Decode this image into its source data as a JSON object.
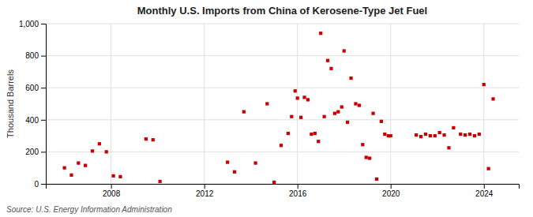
{
  "chart_data": {
    "type": "scatter",
    "title": "Monthly U.S. Imports from China of Kerosene-Type Jet Fuel",
    "y_label": "Thousand Barrels",
    "annotations": [
      "Source: U.S. Energy Information Administration"
    ],
    "color": "#cc0000",
    "marker": "square",
    "grid": true,
    "xlim": [
      2005.2,
      2025.5
    ],
    "xticks": [
      2008,
      2012,
      2016,
      2020,
      2024
    ],
    "ylim": [
      0,
      1000
    ],
    "yticks": [
      0,
      200,
      400,
      600,
      800,
      {
        "value": 1000,
        "label": "1,000"
      }
    ],
    "x": [
      2006.0,
      2006.3,
      2006.6,
      2006.9,
      2007.2,
      2007.5,
      2007.8,
      2008.1,
      2008.4,
      2009.5,
      2009.8,
      2010.1,
      2013.0,
      2013.3,
      2013.7,
      2014.2,
      2014.7,
      2015.0,
      2015.3,
      2015.6,
      2015.75,
      2015.9,
      2016.0,
      2016.15,
      2016.3,
      2016.45,
      2016.6,
      2016.75,
      2016.9,
      2017.0,
      2017.15,
      2017.3,
      2017.45,
      2017.6,
      2017.75,
      2017.9,
      2018.0,
      2018.15,
      2018.3,
      2018.5,
      2018.65,
      2018.8,
      2018.95,
      2019.1,
      2019.25,
      2019.4,
      2019.6,
      2019.75,
      2019.9,
      2020.0,
      2021.1,
      2021.3,
      2021.5,
      2021.7,
      2021.9,
      2022.1,
      2022.3,
      2022.5,
      2022.7,
      2023.0,
      2023.2,
      2023.4,
      2023.6,
      2023.8,
      2024.0,
      2024.2,
      2024.4
    ],
    "values": [
      100,
      55,
      130,
      115,
      205,
      250,
      200,
      50,
      45,
      280,
      275,
      15,
      135,
      75,
      450,
      130,
      500,
      10,
      240,
      315,
      420,
      580,
      535,
      415,
      540,
      525,
      310,
      315,
      265,
      940,
      420,
      770,
      720,
      440,
      450,
      480,
      830,
      385,
      660,
      500,
      490,
      245,
      165,
      160,
      440,
      30,
      390,
      310,
      300,
      300,
      305,
      295,
      310,
      300,
      300,
      320,
      305,
      225,
      350,
      310,
      305,
      310,
      300,
      310,
      620,
      95,
      530
    ]
  }
}
